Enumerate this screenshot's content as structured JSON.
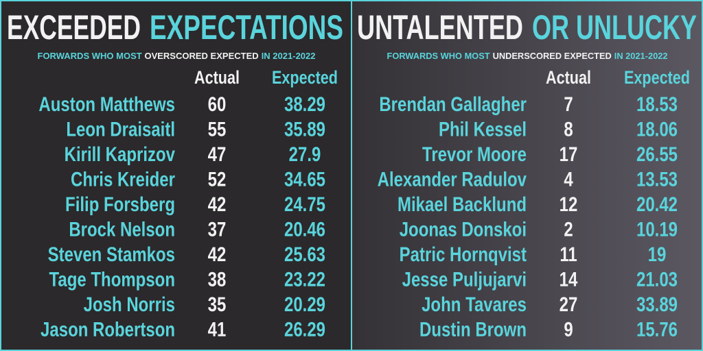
{
  "panels": [
    {
      "title": {
        "part1": "EXCEEDED",
        "part2": "EXPECTATIONS"
      },
      "subtitle": {
        "part1": "FORWARDS WHO MOST",
        "part2": "OVERSCORED EXPECTED",
        "part3": "IN 2021-2022"
      },
      "header": {
        "actual": "Actual",
        "expected": "Expected"
      },
      "rows": [
        [
          "Auston Matthews",
          60,
          38.29
        ],
        [
          "Leon Draisaitl",
          55,
          35.89
        ],
        [
          "Kirill Kaprizov",
          47,
          27.9
        ],
        [
          "Chris Kreider",
          52,
          34.65
        ],
        [
          "Filip Forsberg",
          42,
          24.75
        ],
        [
          "Brock Nelson",
          37,
          20.46
        ],
        [
          "Steven Stamkos",
          42,
          25.63
        ],
        [
          "Tage Thompson",
          38,
          23.22
        ],
        [
          "Josh Norris",
          35,
          20.29
        ],
        [
          "Jason Robertson",
          41,
          26.29
        ]
      ]
    },
    {
      "title": {
        "part1": "UNTALENTED",
        "part2": "OR UNLUCKY"
      },
      "subtitle": {
        "part1": "FORWARDS WHO MOST",
        "part2": "UNDERSCORED EXPECTED",
        "part3": "IN 2021-2022"
      },
      "header": {
        "actual": "Actual",
        "expected": "Expected"
      },
      "rows": [
        [
          "Brendan Gallagher",
          7,
          18.53
        ],
        [
          "Phil Kessel",
          8,
          18.06
        ],
        [
          "Trevor Moore",
          17,
          26.55
        ],
        [
          "Alexander Radulov",
          4,
          13.53
        ],
        [
          "Mikael Backlund",
          12,
          20.42
        ],
        [
          "Joonas Donskoi",
          2,
          10.19
        ],
        [
          "Patric Hornqvist",
          11,
          19
        ],
        [
          "Jesse Puljujarvi",
          14,
          21.03
        ],
        [
          "John Tavares",
          27,
          33.89
        ],
        [
          "Dustin Brown",
          9,
          15.76
        ]
      ]
    }
  ]
}
